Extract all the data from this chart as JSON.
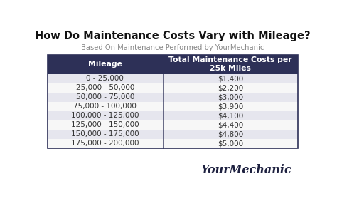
{
  "title": "How Do Maintenance Costs Vary with Mileage?",
  "subtitle": "Based On Maintenance Performed by YourMechanic",
  "col1_header": "Mileage",
  "col2_header": "Total Maintenance Costs per\n25k Miles",
  "rows": [
    [
      "0 - 25,000",
      "$1,400"
    ],
    [
      "25,000 - 50,000",
      "$2,200"
    ],
    [
      "50,000 - 75,000",
      "$3,000"
    ],
    [
      "75,000 - 100,000",
      "$3,900"
    ],
    [
      "100,000 - 125,000",
      "$4,100"
    ],
    [
      "125,000 - 150,000",
      "$4,400"
    ],
    [
      "150,000 - 175,000",
      "$4,800"
    ],
    [
      "175,000 - 200,000",
      "$5,000"
    ]
  ],
  "header_bg": "#2d3057",
  "header_fg": "#ffffff",
  "row_bg_odd": "#e6e6ee",
  "row_bg_even": "#f7f7f7",
  "row_fg": "#333333",
  "bg_color": "#ffffff",
  "title_color": "#111111",
  "subtitle_color": "#888888",
  "table_border_color": "#2d3057",
  "col_split": 0.46,
  "title_fontsize": 10.5,
  "subtitle_fontsize": 7.2,
  "header_fontsize": 7.8,
  "row_fontsize": 7.5,
  "logo_fontsize": 11.5
}
